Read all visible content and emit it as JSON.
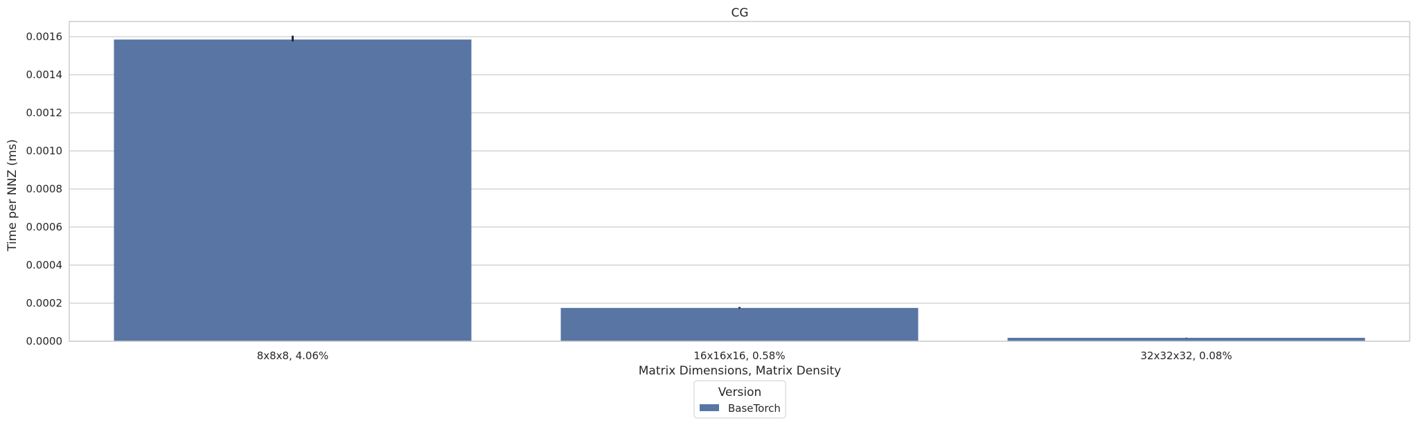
{
  "chart_data": {
    "type": "bar",
    "title": "CG",
    "xlabel": "Matrix Dimensions, Matrix Density",
    "ylabel": "Time per NNZ (ms)",
    "categories": [
      "8x8x8, 4.06%",
      "16x16x16, 0.58%",
      "32x32x32, 0.08%"
    ],
    "series": [
      {
        "name": "BaseTorch",
        "values": [
          0.001585,
          0.000175,
          1.8e-05
        ],
        "error_low": [
          0.001575,
          0.000172,
          1.7e-05
        ],
        "error_high": [
          0.001605,
          0.00018,
          1.9e-05
        ]
      }
    ],
    "ylim": [
      0,
      0.00168
    ],
    "yticks": [
      "0.0000",
      "0.0002",
      "0.0004",
      "0.0006",
      "0.0008",
      "0.0010",
      "0.0012",
      "0.0014",
      "0.0016"
    ],
    "ytick_values": [
      0,
      0.0002,
      0.0004,
      0.0006,
      0.0008,
      0.001,
      0.0012,
      0.0014,
      0.0016
    ],
    "grid": true,
    "legend": {
      "title": "Version",
      "placement": "bottom-center"
    },
    "colors": {
      "bar": "#5875a4",
      "grid": "#cccccc",
      "frame": "#cccccc",
      "error": "#262626"
    }
  }
}
